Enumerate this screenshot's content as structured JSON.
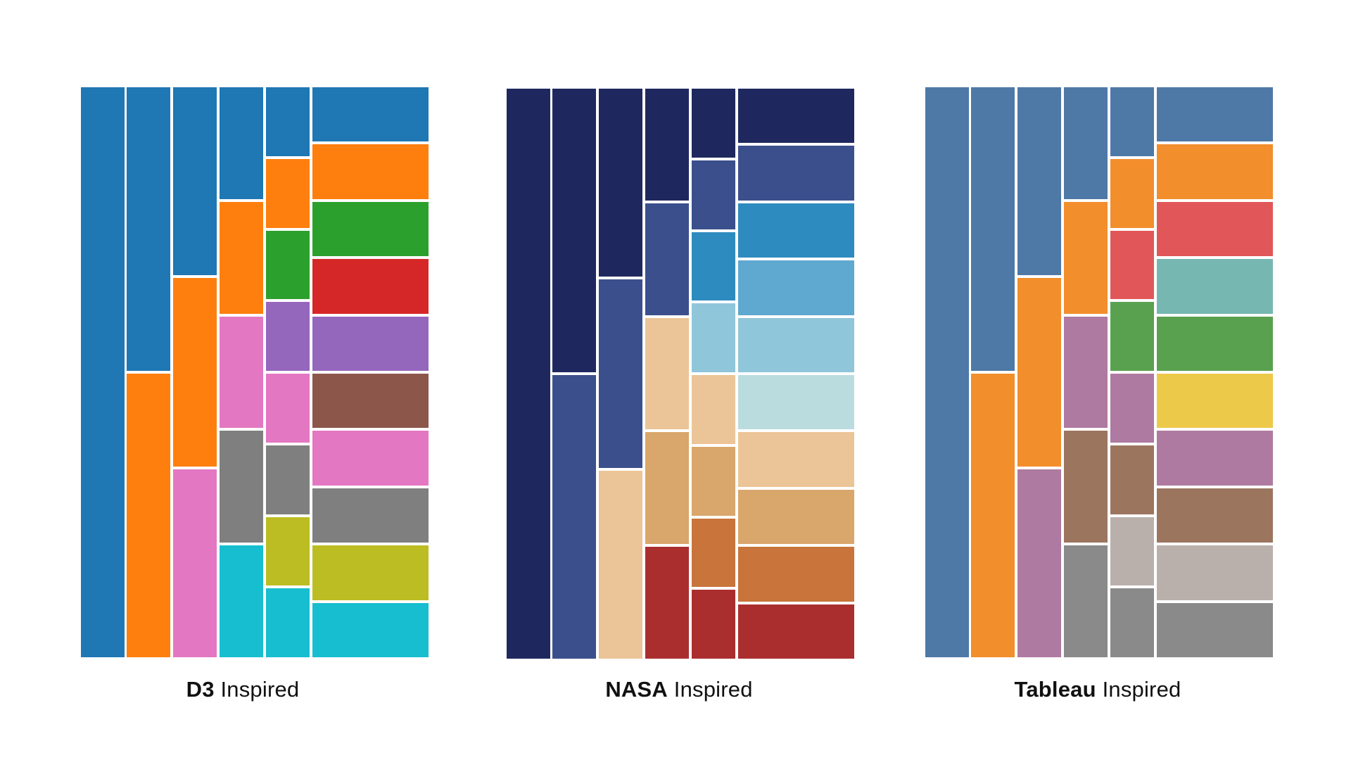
{
  "panels": [
    {
      "id": "d3",
      "caption_bold": "D3",
      "caption_rest": " Inspired",
      "palette": [
        "#1f77b4",
        "#ff7f0e",
        "#2ca02c",
        "#d62728",
        "#9467bd",
        "#8c564b",
        "#e377c2",
        "#7f7f7f",
        "#bcbd22",
        "#17becf"
      ],
      "columns": [
        [
          0
        ],
        [
          0,
          1
        ],
        [
          0,
          1,
          6
        ],
        [
          0,
          1,
          6,
          7,
          9
        ],
        [
          0,
          1,
          2,
          4,
          6,
          7,
          8,
          9
        ],
        [
          0,
          1,
          2,
          3,
          4,
          5,
          6,
          7,
          8,
          9
        ]
      ]
    },
    {
      "id": "nasa",
      "caption_bold": "NASA",
      "caption_rest": " Inspired",
      "palette": [
        "#1f285e",
        "#3b4f8c",
        "#2e8bc0",
        "#5fa8d0",
        "#90c6da",
        "#badcdf",
        "#ebc497",
        "#d9a66b",
        "#c8743a",
        "#ab2e2f"
      ],
      "columns": [
        [
          0
        ],
        [
          0,
          1
        ],
        [
          0,
          1,
          6
        ],
        [
          0,
          1,
          6,
          7,
          9
        ],
        [
          0,
          1,
          2,
          4,
          6,
          7,
          8,
          9
        ],
        [
          0,
          1,
          2,
          3,
          4,
          5,
          6,
          7,
          8,
          9
        ]
      ]
    },
    {
      "id": "tableau",
      "caption_bold": "Tableau",
      "caption_rest": " Inspired",
      "palette": [
        "#4e79a7",
        "#f28e2c",
        "#e15759",
        "#76b7b2",
        "#59a14f",
        "#edc949",
        "#af7aa1",
        "#9c755f",
        "#bab0ab",
        "#8a8a8a"
      ],
      "columns": [
        [
          0
        ],
        [
          0,
          1
        ],
        [
          0,
          1,
          6
        ],
        [
          0,
          1,
          6,
          7,
          9
        ],
        [
          0,
          1,
          2,
          4,
          6,
          7,
          8,
          9
        ],
        [
          0,
          1,
          2,
          3,
          4,
          5,
          6,
          7,
          8,
          9
        ]
      ]
    }
  ]
}
